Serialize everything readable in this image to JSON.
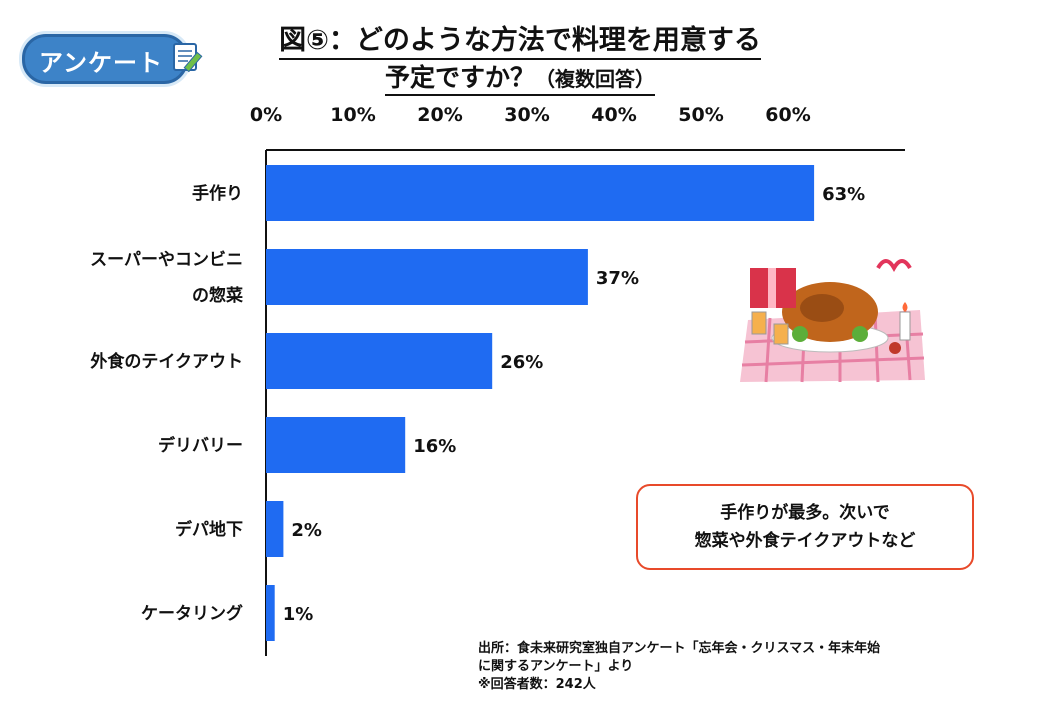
{
  "badge": {
    "label": "アンケート"
  },
  "title": {
    "line1": "図⑤：どのような方法で料理を用意する",
    "line2": "予定ですか？",
    "note": "（複数回答）"
  },
  "chart_data": {
    "type": "bar",
    "orientation": "horizontal",
    "categories": [
      [
        "手作り"
      ],
      [
        "スーパーやコンビニ",
        "の惣菜"
      ],
      [
        "外食のテイクアウト"
      ],
      [
        "デリバリー"
      ],
      [
        "デパ地下"
      ],
      [
        "ケータリング"
      ]
    ],
    "values": [
      63,
      37,
      26,
      16,
      2,
      1
    ],
    "value_labels": [
      "63%",
      "37%",
      "26%",
      "16%",
      "2%",
      "1%"
    ],
    "xlim": [
      0,
      60
    ],
    "xticks": [
      "0%",
      "10%",
      "20%",
      "30%",
      "40%",
      "50%",
      "60%"
    ],
    "axis_position": "top",
    "grid": false,
    "bar_color": "#1f6bf2"
  },
  "callout": {
    "line1": "手作りが最多。次いで",
    "line2": "惣菜や外食テイクアウトなど"
  },
  "source": {
    "line1": "出所：食未来研究室独自アンケート「忘年会・クリスマス・年末年始",
    "line2": "に関するアンケート」より",
    "line3": "※回答者数：242人"
  }
}
